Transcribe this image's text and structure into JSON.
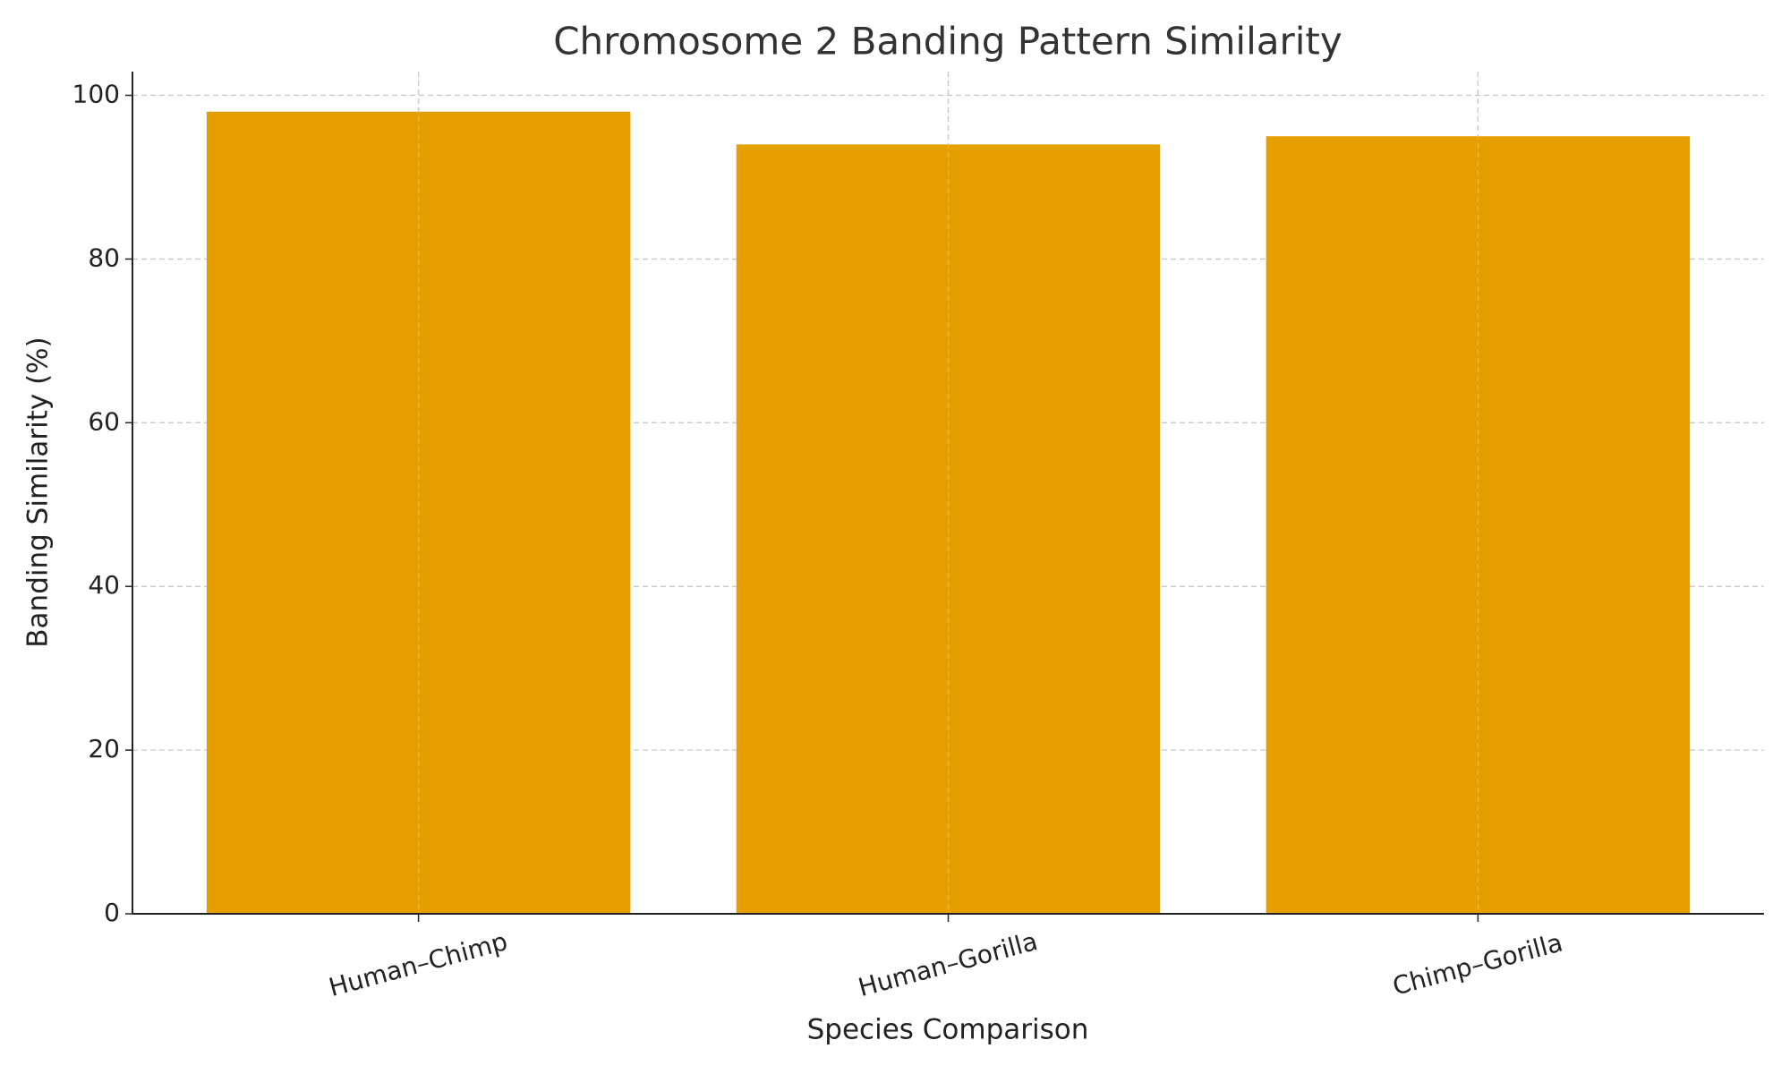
{
  "chart_data": {
    "type": "bar",
    "title": "Chromosome 2 Banding Pattern Similarity",
    "x_label": "Species Comparison",
    "y_label": "Banding Similarity (%)",
    "categories": [
      "Human–Chimp",
      "Human–Gorilla",
      "Chimp–Gorilla"
    ],
    "values": [
      98,
      94,
      95
    ],
    "color": "#e69f00",
    "ylim": [
      0,
      102.9
    ],
    "yticks": [
      0,
      20,
      40,
      60,
      80,
      100
    ],
    "grid": true
  }
}
